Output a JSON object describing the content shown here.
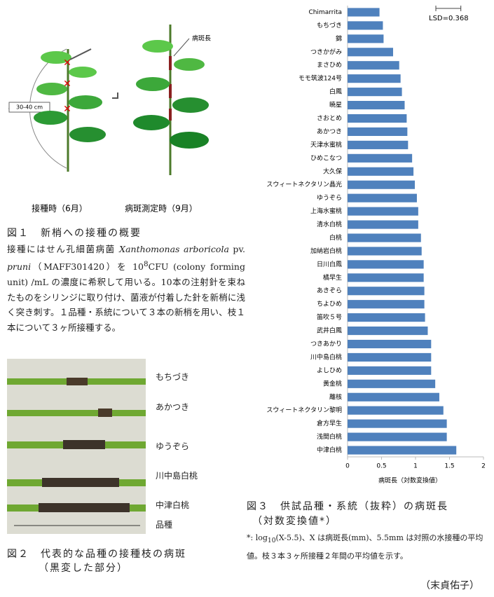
{
  "figure1": {
    "lesion_label": "病斑長",
    "length_label": "30-40 cm",
    "label_inoculation": "接種時（6月）",
    "label_measurement": "病斑測定時（9月）",
    "caption": "図１　新梢への接種の概要",
    "body": [
      "接種にはせん孔細菌病菌 ",
      "Xanthomonas arboricola",
      " pv. ",
      "pruni",
      "（MAFF301420）を 10",
      "8",
      "CFU (colony forming unit) /mL の濃度に希釈して用いる。10本の注射針を束ねたものをシリンジに取り付け、菌液が付着した針を新梢に浅く突き刺す。１品種・系統について３本の新梢を用い、枝１本について３ヶ所接種する。"
    ]
  },
  "figure2": {
    "labels": [
      "もちづき",
      "あかつき",
      "ゆうぞら",
      "川中島白桃",
      "中津白桃",
      "品種"
    ],
    "caption": "図２　代表的な品種の接種枝の病斑",
    "caption_sub": "（黒変した部分）"
  },
  "chart_data": {
    "type": "barh",
    "xlabel": "病斑長（対数変換値）",
    "color": "#4f81bd",
    "categories": [
      "Chimarrita",
      "もちづき",
      "錦",
      "つきかがみ",
      "まさひめ",
      "モモ筑波124号",
      "白鳳",
      "暁星",
      "さおとめ",
      "あかつき",
      "天津水蜜桃",
      "ひめこなつ",
      "大久保",
      "スウィートネクタリン晶光",
      "ゆうぞら",
      "上海水蜜桃",
      "清水白桃",
      "白桃",
      "加納岩白桃",
      "日川白鳳",
      "橘早生",
      "あきぞら",
      "ちよひめ",
      "笛吹５号",
      "武井白鳳",
      "つきあかり",
      "川中島白桃",
      "よしひめ",
      "黄金桃",
      "離核",
      "スウィートネクタリン黎明",
      "倉方早生",
      "浅間白桃",
      "中津白桃"
    ],
    "values": [
      0.47,
      0.52,
      0.53,
      0.67,
      0.76,
      0.78,
      0.8,
      0.84,
      0.87,
      0.88,
      0.89,
      0.95,
      0.97,
      0.99,
      1.02,
      1.04,
      1.04,
      1.08,
      1.09,
      1.12,
      1.12,
      1.13,
      1.13,
      1.14,
      1.18,
      1.23,
      1.23,
      1.23,
      1.29,
      1.35,
      1.41,
      1.46,
      1.46,
      1.6
    ],
    "xlim": [
      0,
      2
    ],
    "xticks": [
      0,
      0.5,
      1,
      1.5,
      2
    ],
    "lsd": {
      "value": 0.368,
      "label": "LSD=0.368"
    }
  },
  "figure3": {
    "caption": "図３　供試品種・系統（抜粋）の病斑長",
    "caption_sub": "（対数変換値*）",
    "note": [
      "*: log",
      "10",
      "(X-5.5)、X は病斑長(mm)、5.5mm は対照の水接種の平均値。枝３本３ヶ所接種２年間の平均値を示す。"
    ]
  },
  "author": "（末貞佑子）"
}
